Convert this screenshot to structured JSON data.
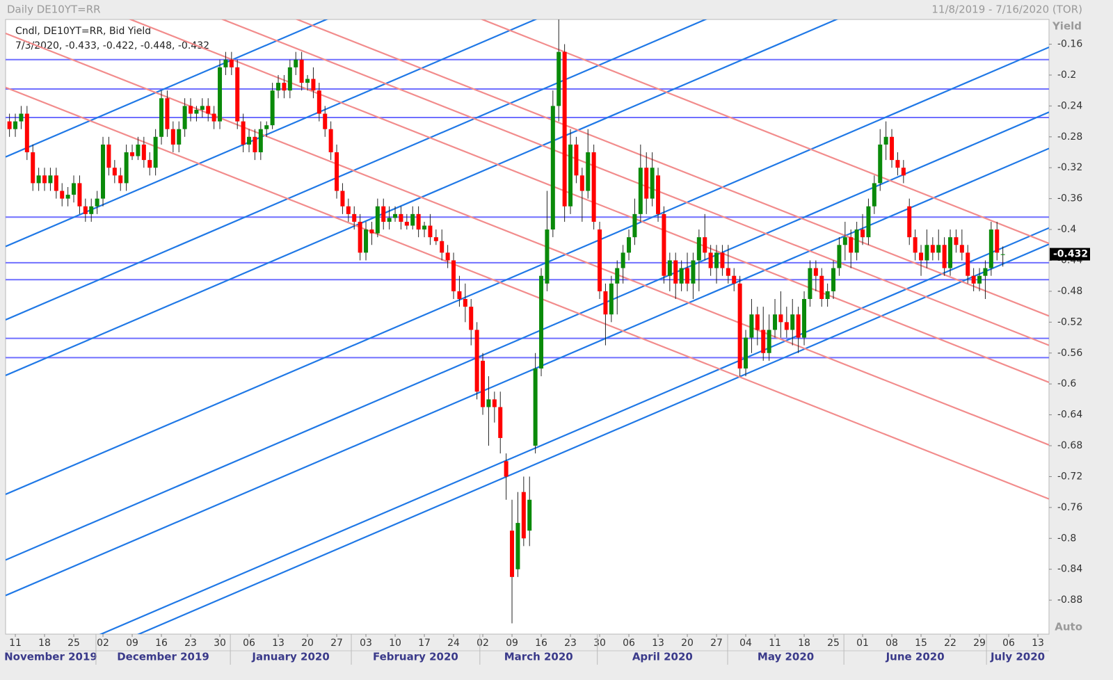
{
  "chart_data": {
    "type": "candlestick",
    "title": "Daily DE10YT=RR",
    "date_range": "11/8/2019 - 7/16/2020 (TOR)",
    "legend_title": "Cndl, DE10YT=RR, Bid Yield",
    "legend_values": "7/3/2020, -0.433, -0.422, -0.448, -0.432",
    "y_label": "Yield",
    "scale_mode": "Auto",
    "up_color": "#0a8a0a",
    "down_color": "#ff0000",
    "xlim": [
      -0.67,
      177.9
    ],
    "ylim": [
      -0.924,
      -0.128
    ],
    "yticks": [
      -0.16,
      -0.2,
      -0.24,
      -0.28,
      -0.32,
      -0.36,
      -0.4,
      -0.44,
      -0.48,
      -0.52,
      -0.56,
      -0.6,
      -0.64,
      -0.68,
      -0.72,
      -0.76,
      -0.8,
      -0.84,
      -0.88
    ],
    "xticks": [
      {
        "value": 1,
        "label": "11"
      },
      {
        "value": 6,
        "label": "18"
      },
      {
        "value": 11,
        "label": "25"
      },
      {
        "value": 16,
        "label": "02"
      },
      {
        "value": 21,
        "label": "09"
      },
      {
        "value": 26,
        "label": "16"
      },
      {
        "value": 31,
        "label": "23"
      },
      {
        "value": 36,
        "label": "30"
      },
      {
        "value": 41,
        "label": "06"
      },
      {
        "value": 46,
        "label": "13"
      },
      {
        "value": 51,
        "label": "20"
      },
      {
        "value": 56,
        "label": "27"
      },
      {
        "value": 61,
        "label": "03"
      },
      {
        "value": 66,
        "label": "10"
      },
      {
        "value": 71,
        "label": "17"
      },
      {
        "value": 76,
        "label": "24"
      },
      {
        "value": 81,
        "label": "02"
      },
      {
        "value": 86,
        "label": "09"
      },
      {
        "value": 91,
        "label": "16"
      },
      {
        "value": 96,
        "label": "23"
      },
      {
        "value": 101,
        "label": "30"
      },
      {
        "value": 106,
        "label": "06"
      },
      {
        "value": 111,
        "label": "13"
      },
      {
        "value": 116,
        "label": "20"
      },
      {
        "value": 121,
        "label": "27"
      },
      {
        "value": 126,
        "label": "04"
      },
      {
        "value": 131,
        "label": "11"
      },
      {
        "value": 136,
        "label": "18"
      },
      {
        "value": 141,
        "label": "25"
      },
      {
        "value": 146,
        "label": "01"
      },
      {
        "value": 151,
        "label": "08"
      },
      {
        "value": 156,
        "label": "15"
      },
      {
        "value": 161,
        "label": "22"
      },
      {
        "value": 166,
        "label": "29"
      },
      {
        "value": 171,
        "label": "06"
      },
      {
        "value": 176,
        "label": "13"
      }
    ],
    "months": [
      {
        "label": "November 2019",
        "start": -0.67
      },
      {
        "label": "December 2019",
        "start": 14.8
      },
      {
        "label": "January 2020",
        "start": 37.8
      },
      {
        "label": "February 2020",
        "start": 58.5
      },
      {
        "label": "March 2020",
        "start": 80.5
      },
      {
        "label": "April 2020",
        "start": 100.6
      },
      {
        "label": "May 2020",
        "start": 122.9
      },
      {
        "label": "June 2020",
        "start": 142.8
      },
      {
        "label": "July 2020",
        "start": 167.2
      }
    ],
    "level_color": "#6f6fff",
    "levels": [
      -0.18,
      -0.218,
      -0.255,
      -0.384,
      -0.443,
      -0.465,
      -0.541,
      -0.566
    ],
    "trend_lines": [
      {
        "color": "#1f78e6",
        "x": [
          -0.67,
          177.9
        ],
        "y": [
          -0.306,
          0.273
        ]
      },
      {
        "color": "#1f78e6",
        "x": [
          -0.67,
          177.9
        ],
        "y": [
          -0.422,
          0.157
        ]
      },
      {
        "color": "#1f78e6",
        "x": [
          -0.67,
          177.9
        ],
        "y": [
          -0.517,
          0.063
        ]
      },
      {
        "color": "#1f78e6",
        "x": [
          -0.67,
          177.9
        ],
        "y": [
          -0.589,
          -0.01
        ]
      },
      {
        "color": "#1f78e6",
        "x": [
          -0.67,
          177.9
        ],
        "y": [
          -0.743,
          -0.164
        ]
      },
      {
        "color": "#1f78e6",
        "x": [
          -0.67,
          177.9
        ],
        "y": [
          -0.828,
          -0.248
        ]
      },
      {
        "color": "#1f78e6",
        "x": [
          -0.67,
          177.9
        ],
        "y": [
          -0.874,
          -0.295
        ]
      },
      {
        "color": "#1f78e6",
        "x": [
          -0.67,
          177.9
        ],
        "y": [
          -0.977,
          -0.398
        ]
      },
      {
        "color": "#1f78e6",
        "x": [
          -0.67,
          177.9
        ],
        "y": [
          -0.998,
          -0.419
        ]
      },
      {
        "color": "#f28c8c",
        "x": [
          -0.67,
          177.9
        ],
        "y": [
          -0.216,
          -0.749
        ]
      },
      {
        "color": "#f28c8c",
        "x": [
          -0.67,
          177.9
        ],
        "y": [
          -0.146,
          -0.679
        ]
      },
      {
        "color": "#f28c8c",
        "x": [
          -0.67,
          177.9
        ],
        "y": [
          -0.064,
          -0.598
        ]
      },
      {
        "color": "#f28c8c",
        "x": [
          -0.67,
          177.9
        ],
        "y": [
          -0.017,
          -0.55
        ]
      },
      {
        "color": "#f28c8c",
        "x": [
          -0.67,
          177.9
        ],
        "y": [
          0.021,
          -0.512
        ]
      },
      {
        "color": "#f28c8c",
        "x": [
          -0.67,
          177.9
        ],
        "y": [
          0.116,
          -0.418
        ]
      }
    ],
    "candles": [
      [
        -0.26,
        -0.25,
        -0.28,
        -0.27
      ],
      [
        -0.27,
        -0.25,
        -0.28,
        -0.26
      ],
      [
        -0.26,
        -0.24,
        -0.27,
        -0.25
      ],
      [
        -0.25,
        -0.24,
        -0.31,
        -0.3
      ],
      [
        -0.3,
        -0.29,
        -0.35,
        -0.34
      ],
      [
        -0.34,
        -0.32,
        -0.35,
        -0.33
      ],
      [
        -0.33,
        -0.32,
        -0.35,
        -0.34
      ],
      [
        -0.34,
        -0.32,
        -0.35,
        -0.33
      ],
      [
        -0.33,
        -0.32,
        -0.36,
        -0.35
      ],
      [
        -0.35,
        -0.34,
        -0.37,
        -0.36
      ],
      [
        -0.36,
        -0.345,
        -0.37,
        -0.355
      ],
      [
        -0.355,
        -0.33,
        -0.365,
        -0.34
      ],
      [
        -0.34,
        -0.33,
        -0.38,
        -0.37
      ],
      [
        -0.37,
        -0.36,
        -0.39,
        -0.38
      ],
      [
        -0.38,
        -0.36,
        -0.39,
        -0.37
      ],
      [
        -0.37,
        -0.35,
        -0.38,
        -0.36
      ],
      [
        -0.36,
        -0.28,
        -0.37,
        -0.29
      ],
      [
        -0.29,
        -0.28,
        -0.33,
        -0.32
      ],
      [
        -0.32,
        -0.31,
        -0.34,
        -0.33
      ],
      [
        -0.33,
        -0.32,
        -0.35,
        -0.34
      ],
      [
        -0.34,
        -0.29,
        -0.35,
        -0.3
      ],
      [
        -0.3,
        -0.29,
        -0.31,
        -0.305
      ],
      [
        -0.305,
        -0.28,
        -0.31,
        -0.29
      ],
      [
        -0.29,
        -0.28,
        -0.32,
        -0.31
      ],
      [
        -0.31,
        -0.3,
        -0.33,
        -0.32
      ],
      [
        -0.32,
        -0.27,
        -0.33,
        -0.28
      ],
      [
        -0.28,
        -0.22,
        -0.29,
        -0.23
      ],
      [
        -0.23,
        -0.22,
        -0.28,
        -0.27
      ],
      [
        -0.27,
        -0.26,
        -0.3,
        -0.29
      ],
      [
        -0.29,
        -0.26,
        -0.3,
        -0.27
      ],
      [
        -0.27,
        -0.23,
        -0.28,
        -0.24
      ],
      [
        -0.24,
        -0.23,
        -0.26,
        -0.25
      ],
      [
        -0.25,
        -0.24,
        -0.26,
        -0.245
      ],
      [
        -0.245,
        -0.23,
        -0.255,
        -0.24
      ],
      [
        -0.24,
        -0.23,
        -0.26,
        -0.25
      ],
      [
        -0.25,
        -0.24,
        -0.27,
        -0.26
      ],
      [
        -0.26,
        -0.18,
        -0.27,
        -0.19
      ],
      [
        -0.19,
        -0.17,
        -0.2,
        -0.18
      ],
      [
        -0.18,
        -0.17,
        -0.2,
        -0.19
      ],
      [
        -0.19,
        -0.18,
        -0.27,
        -0.26
      ],
      [
        -0.26,
        -0.25,
        -0.3,
        -0.29
      ],
      [
        -0.29,
        -0.27,
        -0.3,
        -0.28
      ],
      [
        -0.28,
        -0.27,
        -0.31,
        -0.3
      ],
      [
        -0.3,
        -0.26,
        -0.31,
        -0.27
      ],
      [
        -0.27,
        -0.26,
        -0.28,
        -0.265
      ],
      [
        -0.265,
        -0.21,
        -0.27,
        -0.22
      ],
      [
        -0.22,
        -0.2,
        -0.23,
        -0.21
      ],
      [
        -0.21,
        -0.2,
        -0.23,
        -0.22
      ],
      [
        -0.22,
        -0.18,
        -0.23,
        -0.19
      ],
      [
        -0.19,
        -0.17,
        -0.2,
        -0.18
      ],
      [
        -0.18,
        -0.17,
        -0.22,
        -0.21
      ],
      [
        -0.21,
        -0.2,
        -0.22,
        -0.205
      ],
      [
        -0.205,
        -0.19,
        -0.23,
        -0.22
      ],
      [
        -0.22,
        -0.21,
        -0.26,
        -0.25
      ],
      [
        -0.25,
        -0.24,
        -0.28,
        -0.27
      ],
      [
        -0.27,
        -0.26,
        -0.31,
        -0.3
      ],
      [
        -0.3,
        -0.29,
        -0.36,
        -0.35
      ],
      [
        -0.35,
        -0.34,
        -0.38,
        -0.37
      ],
      [
        -0.37,
        -0.36,
        -0.39,
        -0.38
      ],
      [
        -0.38,
        -0.37,
        -0.4,
        -0.39
      ],
      [
        -0.39,
        -0.38,
        -0.44,
        -0.43
      ],
      [
        -0.43,
        -0.39,
        -0.44,
        -0.4
      ],
      [
        -0.4,
        -0.39,
        -0.42,
        -0.405
      ],
      [
        -0.405,
        -0.36,
        -0.41,
        -0.37
      ],
      [
        -0.37,
        -0.36,
        -0.4,
        -0.39
      ],
      [
        -0.39,
        -0.37,
        -0.4,
        -0.385
      ],
      [
        -0.385,
        -0.37,
        -0.39,
        -0.38
      ],
      [
        -0.38,
        -0.37,
        -0.4,
        -0.39
      ],
      [
        -0.39,
        -0.38,
        -0.4,
        -0.395
      ],
      [
        -0.395,
        -0.37,
        -0.4,
        -0.38
      ],
      [
        -0.38,
        -0.37,
        -0.41,
        -0.4
      ],
      [
        -0.4,
        -0.39,
        -0.41,
        -0.395
      ],
      [
        -0.395,
        -0.38,
        -0.42,
        -0.41
      ],
      [
        -0.41,
        -0.4,
        -0.42,
        -0.415
      ],
      [
        -0.415,
        -0.4,
        -0.44,
        -0.43
      ],
      [
        -0.43,
        -0.42,
        -0.45,
        -0.44
      ],
      [
        -0.44,
        -0.43,
        -0.49,
        -0.48
      ],
      [
        -0.48,
        -0.46,
        -0.5,
        -0.49
      ],
      [
        -0.49,
        -0.47,
        -0.52,
        -0.5
      ],
      [
        -0.5,
        -0.49,
        -0.55,
        -0.53
      ],
      [
        -0.53,
        -0.52,
        -0.62,
        -0.61
      ],
      [
        -0.57,
        -0.56,
        -0.64,
        -0.63
      ],
      [
        -0.63,
        -0.59,
        -0.68,
        -0.62
      ],
      [
        -0.62,
        -0.61,
        -0.65,
        -0.63
      ],
      [
        -0.63,
        -0.61,
        -0.69,
        -0.67
      ],
      [
        -0.7,
        -0.69,
        -0.75,
        -0.72
      ],
      [
        -0.79,
        -0.75,
        -0.91,
        -0.85
      ],
      [
        -0.84,
        -0.74,
        -0.85,
        -0.78
      ],
      [
        -0.74,
        -0.72,
        -0.81,
        -0.8
      ],
      [
        -0.79,
        -0.72,
        -0.81,
        -0.75
      ],
      [
        -0.68,
        -0.56,
        -0.69,
        -0.58
      ],
      [
        -0.58,
        -0.45,
        -0.59,
        -0.46
      ],
      [
        -0.47,
        -0.35,
        -0.48,
        -0.4
      ],
      [
        -0.4,
        -0.22,
        -0.41,
        -0.24
      ],
      [
        -0.24,
        -0.12,
        -0.26,
        -0.17
      ],
      [
        -0.17,
        -0.16,
        -0.39,
        -0.37
      ],
      [
        -0.37,
        -0.27,
        -0.38,
        -0.29
      ],
      [
        -0.29,
        -0.28,
        -0.34,
        -0.33
      ],
      [
        -0.33,
        -0.32,
        -0.39,
        -0.35
      ],
      [
        -0.35,
        -0.27,
        -0.36,
        -0.3
      ],
      [
        -0.3,
        -0.29,
        -0.4,
        -0.39
      ],
      [
        -0.4,
        -0.39,
        -0.49,
        -0.48
      ],
      [
        -0.48,
        -0.47,
        -0.55,
        -0.51
      ],
      [
        -0.51,
        -0.46,
        -0.52,
        -0.47
      ],
      [
        -0.47,
        -0.44,
        -0.51,
        -0.45
      ],
      [
        -0.45,
        -0.42,
        -0.47,
        -0.43
      ],
      [
        -0.43,
        -0.4,
        -0.44,
        -0.41
      ],
      [
        -0.41,
        -0.36,
        -0.42,
        -0.38
      ],
      [
        -0.38,
        -0.29,
        -0.39,
        -0.32
      ],
      [
        -0.32,
        -0.3,
        -0.38,
        -0.36
      ],
      [
        -0.36,
        -0.3,
        -0.37,
        -0.32
      ],
      [
        -0.33,
        -0.32,
        -0.39,
        -0.38
      ],
      [
        -0.38,
        -0.37,
        -0.47,
        -0.46
      ],
      [
        -0.46,
        -0.43,
        -0.48,
        -0.44
      ],
      [
        -0.44,
        -0.43,
        -0.49,
        -0.47
      ],
      [
        -0.47,
        -0.44,
        -0.48,
        -0.45
      ],
      [
        -0.45,
        -0.43,
        -0.48,
        -0.47
      ],
      [
        -0.47,
        -0.43,
        -0.49,
        -0.44
      ],
      [
        -0.44,
        -0.4,
        -0.48,
        -0.41
      ],
      [
        -0.41,
        -0.38,
        -0.44,
        -0.43
      ],
      [
        -0.43,
        -0.42,
        -0.46,
        -0.45
      ],
      [
        -0.45,
        -0.42,
        -0.47,
        -0.43
      ],
      [
        -0.43,
        -0.42,
        -0.46,
        -0.45
      ],
      [
        -0.45,
        -0.42,
        -0.47,
        -0.46
      ],
      [
        -0.46,
        -0.45,
        -0.48,
        -0.47
      ],
      [
        -0.47,
        -0.46,
        -0.59,
        -0.58
      ],
      [
        -0.58,
        -0.53,
        -0.59,
        -0.54
      ],
      [
        -0.54,
        -0.49,
        -0.56,
        -0.51
      ],
      [
        -0.51,
        -0.5,
        -0.55,
        -0.53
      ],
      [
        -0.53,
        -0.5,
        -0.57,
        -0.56
      ],
      [
        -0.56,
        -0.51,
        -0.57,
        -0.53
      ],
      [
        -0.53,
        -0.49,
        -0.54,
        -0.51
      ],
      [
        -0.51,
        -0.48,
        -0.54,
        -0.52
      ],
      [
        -0.52,
        -0.5,
        -0.54,
        -0.53
      ],
      [
        -0.53,
        -0.49,
        -0.55,
        -0.51
      ],
      [
        -0.51,
        -0.5,
        -0.56,
        -0.54
      ],
      [
        -0.54,
        -0.48,
        -0.55,
        -0.49
      ],
      [
        -0.49,
        -0.44,
        -0.5,
        -0.45
      ],
      [
        -0.45,
        -0.44,
        -0.48,
        -0.46
      ],
      [
        -0.46,
        -0.45,
        -0.5,
        -0.49
      ],
      [
        -0.49,
        -0.47,
        -0.5,
        -0.48
      ],
      [
        -0.48,
        -0.44,
        -0.49,
        -0.45
      ],
      [
        -0.45,
        -0.41,
        -0.46,
        -0.42
      ],
      [
        -0.42,
        -0.39,
        -0.44,
        -0.41
      ],
      [
        -0.41,
        -0.4,
        -0.45,
        -0.43
      ],
      [
        -0.43,
        -0.39,
        -0.44,
        -0.4
      ],
      [
        -0.4,
        -0.38,
        -0.42,
        -0.41
      ],
      [
        -0.41,
        -0.36,
        -0.42,
        -0.37
      ],
      [
        -0.37,
        -0.33,
        -0.38,
        -0.34
      ],
      [
        -0.34,
        -0.27,
        -0.35,
        -0.29
      ],
      [
        -0.29,
        -0.26,
        -0.31,
        -0.28
      ],
      [
        -0.28,
        -0.27,
        -0.32,
        -0.31
      ],
      [
        -0.31,
        -0.3,
        -0.33,
        -0.32
      ],
      [
        -0.32,
        -0.31,
        -0.34,
        -0.33
      ],
      [
        -0.37,
        -0.36,
        -0.42,
        -0.41
      ],
      [
        -0.41,
        -0.4,
        -0.44,
        -0.43
      ],
      [
        -0.43,
        -0.42,
        -0.46,
        -0.44
      ],
      [
        -0.44,
        -0.4,
        -0.45,
        -0.42
      ],
      [
        -0.42,
        -0.41,
        -0.44,
        -0.43
      ],
      [
        -0.43,
        -0.4,
        -0.44,
        -0.42
      ],
      [
        -0.42,
        -0.41,
        -0.46,
        -0.45
      ],
      [
        -0.45,
        -0.4,
        -0.46,
        -0.41
      ],
      [
        -0.41,
        -0.4,
        -0.43,
        -0.42
      ],
      [
        -0.42,
        -0.4,
        -0.44,
        -0.43
      ],
      [
        -0.43,
        -0.42,
        -0.47,
        -0.46
      ],
      [
        -0.46,
        -0.45,
        -0.48,
        -0.47
      ],
      [
        -0.47,
        -0.45,
        -0.48,
        -0.46
      ],
      [
        -0.46,
        -0.44,
        -0.49,
        -0.45
      ],
      [
        -0.45,
        -0.39,
        -0.46,
        -0.4
      ],
      [
        -0.4,
        -0.39,
        -0.44,
        -0.43
      ],
      [
        -0.433,
        -0.422,
        -0.448,
        -0.432
      ]
    ]
  }
}
